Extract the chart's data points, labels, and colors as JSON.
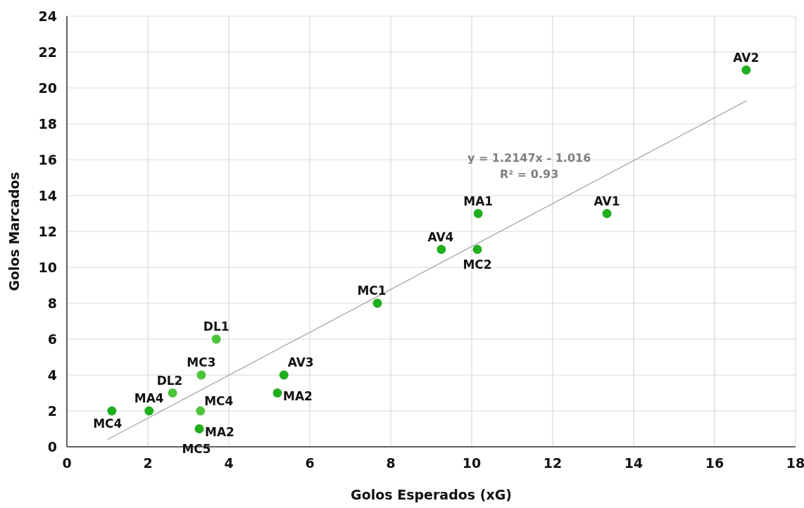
{
  "chart_data": {
    "type": "scatter",
    "xlabel": "Golos Esperados (xG)",
    "ylabel": "Golos Marcados",
    "xlim": [
      0,
      18
    ],
    "xticks": [
      0,
      2,
      4,
      6,
      8,
      10,
      12,
      14,
      16,
      18
    ],
    "ylim": [
      0,
      24
    ],
    "yticks": [
      0,
      2,
      4,
      6,
      8,
      10,
      12,
      14,
      16,
      18,
      20,
      22,
      24
    ],
    "grid": true,
    "series": [
      {
        "marker": "circle",
        "x": [
          1.11,
          2.03,
          2.61,
          3.32,
          3.69,
          3.3,
          3.27,
          5.36,
          5.2,
          7.67,
          9.25,
          10.14,
          10.16,
          13.34,
          16.78
        ],
        "values": [
          2,
          2,
          3,
          4,
          6,
          2,
          1,
          4,
          3,
          8,
          11,
          11,
          13,
          13,
          21
        ],
        "colors": [
          "#1fae1f",
          "#1fae1f",
          "#4cc43c",
          "#4cc43c",
          "#4cc43c",
          "#4cc43c",
          "#1fae1f",
          "#1fae1f",
          "#1fae1f",
          "#1fae1f",
          "#1fae1f",
          "#1fae1f",
          "#1fae1f",
          "#1fae1f",
          "#1fae1f"
        ]
      },
      {
        "type": "line",
        "x": [
          1.0,
          16.8
        ],
        "values": [
          0.4,
          19.3
        ],
        "color": "#a6a6a6",
        "line_style": "solid"
      }
    ],
    "annotations": [
      {
        "text": "MC4",
        "x": 1.11,
        "y": 2
      },
      {
        "text": "MA4",
        "x": 2.03,
        "y": 2
      },
      {
        "text": "DL2",
        "x": 2.61,
        "y": 3
      },
      {
        "text": "MC3",
        "x": 3.32,
        "y": 4
      },
      {
        "text": "DL1",
        "x": 3.69,
        "y": 6
      },
      {
        "text": "MC4",
        "x": 3.3,
        "y": 2
      },
      {
        "text": "MA2",
        "x": 3.27,
        "y": 1
      },
      {
        "text": "MC5",
        "x": 3.27,
        "y": 1
      },
      {
        "text": "AV3",
        "x": 5.36,
        "y": 4
      },
      {
        "text": "MA2",
        "x": 5.2,
        "y": 3
      },
      {
        "text": "MC1",
        "x": 7.67,
        "y": 8
      },
      {
        "text": "AV4",
        "x": 9.25,
        "y": 11
      },
      {
        "text": "MC2",
        "x": 10.14,
        "y": 11
      },
      {
        "text": "MA1",
        "x": 10.16,
        "y": 13
      },
      {
        "text": "AV1",
        "x": 13.34,
        "y": 13
      },
      {
        "text": "AV2",
        "x": 16.78,
        "y": 21
      },
      "y = 1.2147x - 1.016",
      "R² = 0.93"
    ]
  }
}
